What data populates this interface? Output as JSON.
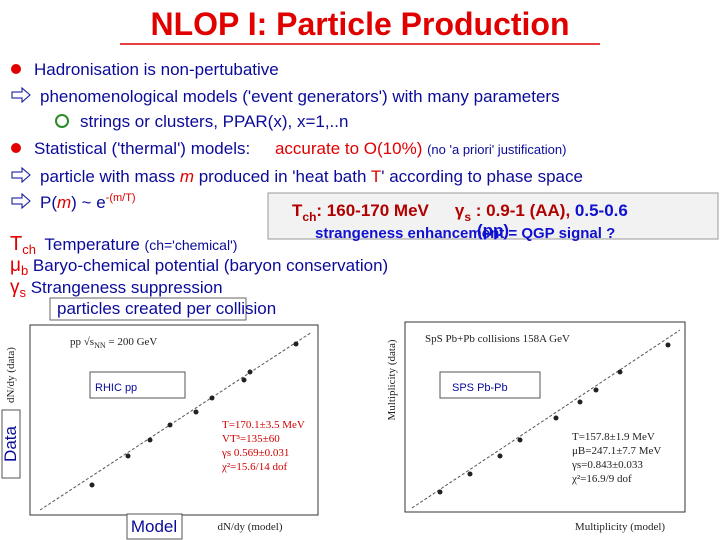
{
  "title": "NLOP I: Particle Production",
  "items": [
    {
      "parts": [
        "Hadronisation is non-pertubative"
      ]
    },
    {
      "parts": [
        "phenomenological models ('event generators')  with many parameters"
      ]
    },
    {
      "parts": [
        "strings or clusters, PPAR(x), x=1,..n"
      ]
    },
    {
      "parts": [
        "Statistical ('thermal') models:",
        "accurate to O(10%)",
        "(no 'a priori' justification)"
      ]
    },
    {
      "parts": [
        "particle with mass ",
        "m",
        " produced in 'heat bath ",
        "T",
        "' according to phase space"
      ]
    },
    {
      "parts": [
        "P(",
        "m",
        ") ~ e",
        "-(m/T)"
      ]
    }
  ],
  "result_box": {
    "parts": [
      "T",
      "ch",
      ": 160-170 MeV",
      "γ",
      "s",
      " :  0.9-1 (AA), ",
      "0.5-0.6",
      "(pp)"
    ]
  },
  "parameters": [
    {
      "symbol": "T",
      "sub": "ch",
      "text": " Temperature ",
      "note": "(ch='chemical')"
    },
    {
      "symbol": "μ",
      "sub": "b",
      "text": " Baryo-chemical potential (baryon conservation)"
    },
    {
      "symbol": "γ",
      "sub": "s",
      "text": "  Strangeness suppression"
    }
  ],
  "remark": "strangeness enhancement = QGP signal ?",
  "caption": "particles created per collision",
  "plots": [
    {
      "label": "RHIC pp",
      "heading": "pp √s",
      "heading_sub": "NN",
      "heading_rest": " = 200 GeV",
      "ylabel": "dN/dy (data)",
      "xlabel": "dN/dy (model)",
      "fit": [
        "T=170.1±3.5 MeV",
        "VT³=135±60",
        "γs   0.569±0.031",
        "χ²=15.6/14 dof"
      ]
    },
    {
      "label": "SPS Pb-Pb",
      "heading": "SpS Pb+Pb collisions 158A GeV",
      "ylabel": "Multiplicity (data)",
      "xlabel": "Multiplicity (model)",
      "fit": [
        "T=157.8±1.9 MeV",
        "μB=247.1±7.7 MeV",
        "γs=0.843±0.033",
        "χ²=16.9/9 dof"
      ]
    }
  ],
  "side_label": "Data",
  "bottom_label": "Model"
}
